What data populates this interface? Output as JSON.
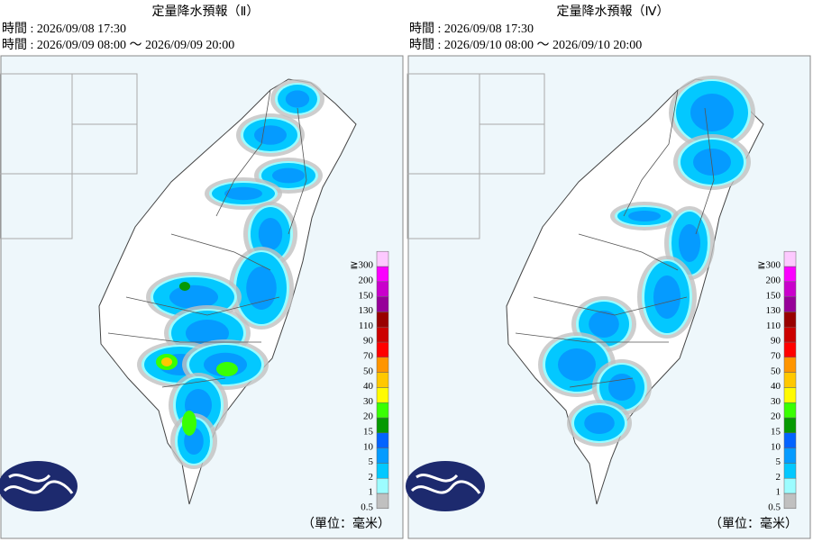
{
  "panels": [
    {
      "title": "定量降水預報（Ⅱ）",
      "issued": "時間 : 2026/09/08 17:30",
      "valid": "時間 : 2026/09/09 08:00 ～ 2026/09/09 20:00",
      "unit": "（單位：毫米）"
    },
    {
      "title": "定量降水預報（Ⅳ）",
      "issued": "時間 : 2026/09/08 17:30",
      "valid": "時間 : 2026/09/10 08:00 ～ 2026/09/10 20:00",
      "unit": "（單位：毫米）"
    }
  ],
  "legend": [
    {
      "label": "0.5",
      "color": "#c0c0c0"
    },
    {
      "label": "1",
      "color": "#9cfcff"
    },
    {
      "label": "2",
      "color": "#03c8ff"
    },
    {
      "label": "5",
      "color": "#059bff"
    },
    {
      "label": "10",
      "color": "#0363ff"
    },
    {
      "label": "15",
      "color": "#059902"
    },
    {
      "label": "20",
      "color": "#39ff03"
    },
    {
      "label": "30",
      "color": "#fffb03"
    },
    {
      "label": "40",
      "color": "#ffc800"
    },
    {
      "label": "50",
      "color": "#ff9500"
    },
    {
      "label": "70",
      "color": "#ff0000"
    },
    {
      "label": "90",
      "color": "#cc0000"
    },
    {
      "label": "110",
      "color": "#990000"
    },
    {
      "label": "130",
      "color": "#960099"
    },
    {
      "label": "150",
      "color": "#c900cc"
    },
    {
      "label": "200",
      "color": "#fb00ff"
    },
    {
      "label": "≧300",
      "color": "#fdc9ff"
    }
  ]
}
